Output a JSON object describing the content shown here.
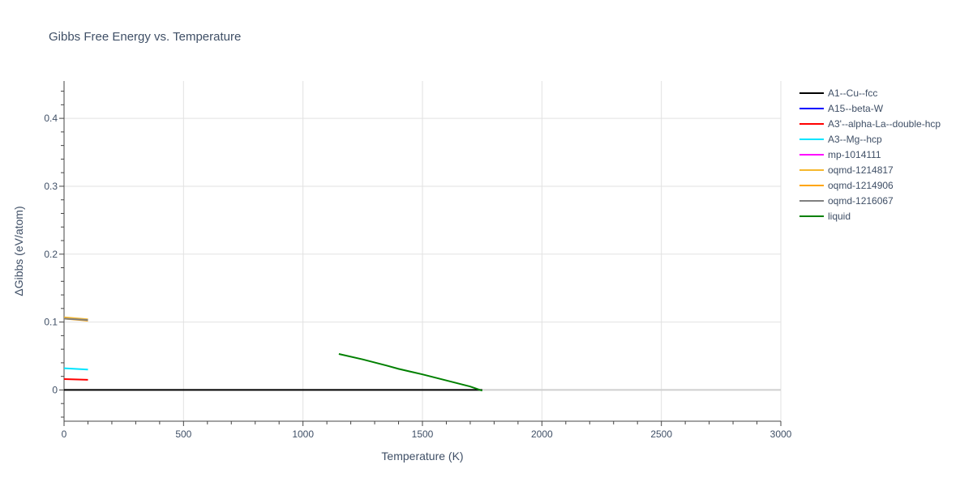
{
  "chart_data": {
    "type": "line",
    "title": "Gibbs Free Energy vs. Temperature",
    "xlabel": "Temperature (K)",
    "ylabel": "ΔGibbs (eV/atom)",
    "xlim": [
      0,
      3000
    ],
    "ylim": [
      -0.046,
      0.455
    ],
    "x_ticks": [
      0,
      500,
      1000,
      1500,
      2000,
      2500,
      3000
    ],
    "x_tick_labels": [
      "0",
      "500",
      "1000",
      "1500",
      "2000",
      "2500",
      "3000"
    ],
    "y_ticks": [
      0,
      0.1,
      0.2,
      0.3,
      0.4
    ],
    "y_tick_labels": [
      "0",
      "0.1",
      "0.2",
      "0.3",
      "0.4"
    ],
    "grid": true,
    "legend_position": "right",
    "series": [
      {
        "name": "A1--Cu--fcc",
        "color": "#000000",
        "x": [
          0,
          1750
        ],
        "y": [
          0,
          0
        ]
      },
      {
        "name": "A15--beta-W",
        "color": "#0000ff",
        "x": [],
        "y": []
      },
      {
        "name": "A3'--alpha-La--double-hcp",
        "color": "#ff0000",
        "x": [
          0,
          100
        ],
        "y": [
          0.016,
          0.015
        ]
      },
      {
        "name": "A3--Mg--hcp",
        "color": "#00e5ff",
        "x": [
          0,
          100
        ],
        "y": [
          0.032,
          0.03
        ]
      },
      {
        "name": "mp-1014111",
        "color": "#ff00ff",
        "x": [],
        "y": []
      },
      {
        "name": "oqmd-1214817",
        "color": "#f5b82e",
        "x": [
          0,
          100
        ],
        "y": [
          0.107,
          0.104
        ]
      },
      {
        "name": "oqmd-1214906",
        "color": "#ffa500",
        "x": [
          0,
          100
        ],
        "y": [
          0.105,
          0.102
        ]
      },
      {
        "name": "oqmd-1216067",
        "color": "#808080",
        "x": [
          0,
          100
        ],
        "y": [
          0.105,
          0.103
        ]
      },
      {
        "name": "liquid",
        "color": "#008000",
        "x": [
          1150,
          1250,
          1350,
          1400,
          1500,
          1600,
          1700,
          1750
        ],
        "y": [
          0.053,
          0.045,
          0.036,
          0.031,
          0.023,
          0.014,
          0.005,
          -0.001
        ]
      }
    ]
  }
}
